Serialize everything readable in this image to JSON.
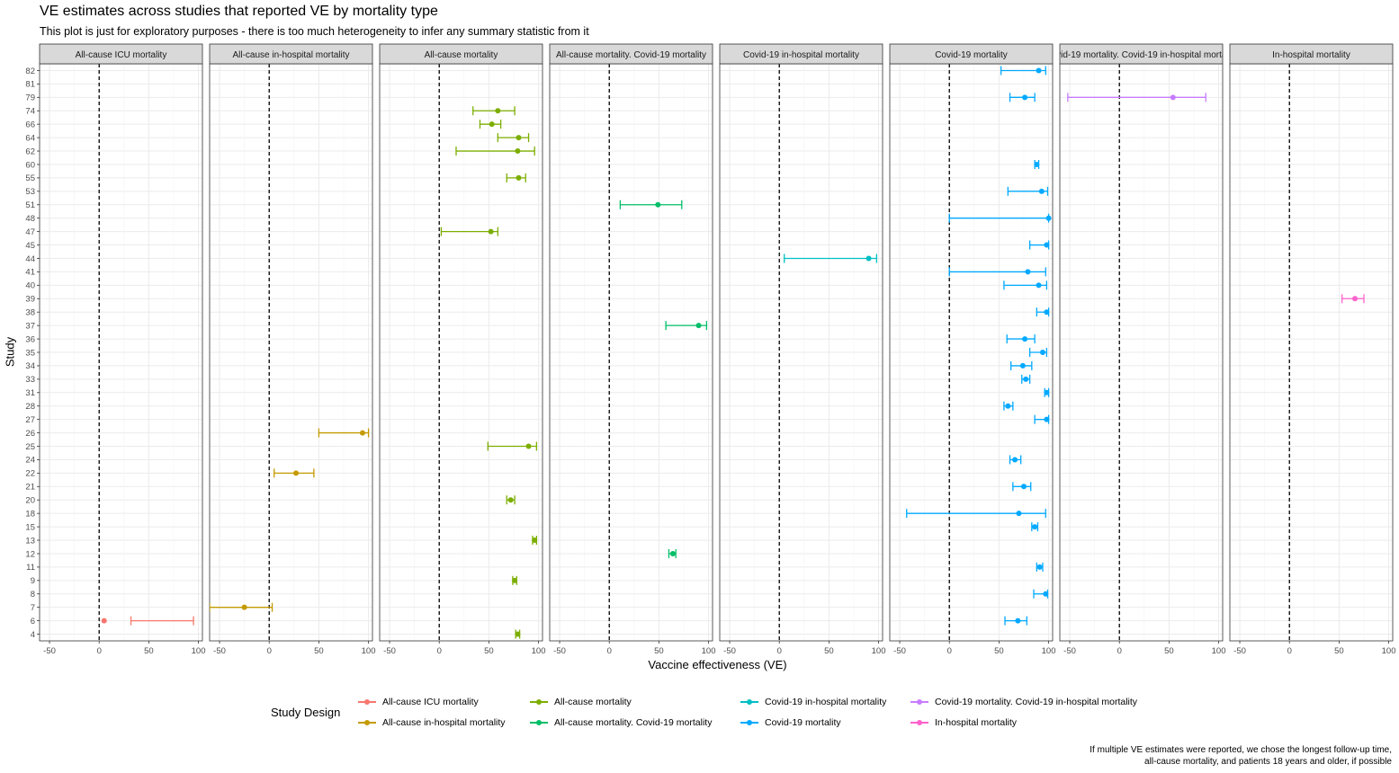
{
  "title": "VE estimates across studies that reported VE by mortality type",
  "subtitle": "This plot is just for exploratory purposes - there is too much heterogeneity to infer any summary statistic from it",
  "caption_line1": "If multiple VE estimates were reported, we chose the longest follow-up time,",
  "caption_line2": "all-cause mortality, and patients 18 years and older, if possible",
  "chart_data": {
    "type": "scatter",
    "subtype": "forest plot with error bars, faceted",
    "xlabel": "Vaccine effectiveness (VE)",
    "ylabel": "Study",
    "xlim": [
      -60,
      104
    ],
    "x_ticks": [
      -50,
      0,
      50,
      100
    ],
    "x_tick_labels": [
      "-50",
      "0",
      "50",
      "100"
    ],
    "reference_line_x": 0,
    "grid": true,
    "legend_title": "Study Design",
    "legend_position": "bottom",
    "studies": [
      "4",
      "6",
      "7",
      "8",
      "9",
      "11",
      "12",
      "13",
      "15",
      "18",
      "20",
      "21",
      "22",
      "24",
      "25",
      "26",
      "27",
      "28",
      "31",
      "33",
      "34",
      "35",
      "36",
      "37",
      "38",
      "39",
      "40",
      "41",
      "44",
      "45",
      "47",
      "48",
      "51",
      "53",
      "55",
      "60",
      "62",
      "64",
      "66",
      "74",
      "79",
      "81",
      "82"
    ],
    "panels": [
      {
        "label": "All-cause ICU mortality",
        "color": "#F8766D"
      },
      {
        "label": "All-cause in-hospital mortality",
        "color": "#C49A00"
      },
      {
        "label": "All-cause mortality",
        "color": "#7CAE00"
      },
      {
        "label": "All-cause mortality. Covid-19 mortality",
        "color": "#00BE67"
      },
      {
        "label": "Covid-19 in-hospital mortality",
        "color": "#00BFC4"
      },
      {
        "label": "Covid-19 mortality",
        "color": "#00A9FF"
      },
      {
        "label": "Covid-19 mortality. Covid-19 in-hospital mortality",
        "color": "#C77CFF"
      },
      {
        "label": "In-hospital mortality",
        "color": "#FF61CC"
      }
    ],
    "points": [
      {
        "panel": 0,
        "study": "6",
        "ve": 5,
        "lo": 32,
        "hi": 95
      },
      {
        "panel": 1,
        "study": "7",
        "ve": -25,
        "lo": -60,
        "hi": 3
      },
      {
        "panel": 1,
        "study": "22",
        "ve": 27,
        "lo": 5,
        "hi": 45
      },
      {
        "panel": 1,
        "study": "26",
        "ve": 94,
        "lo": 50,
        "hi": 100
      },
      {
        "panel": 2,
        "study": "4",
        "ve": 79,
        "lo": 77,
        "hi": 81
      },
      {
        "panel": 2,
        "study": "9",
        "ve": 76,
        "lo": 74,
        "hi": 78
      },
      {
        "panel": 2,
        "study": "13",
        "ve": 96,
        "lo": 94,
        "hi": 98
      },
      {
        "panel": 2,
        "study": "20",
        "ve": 72,
        "lo": 68,
        "hi": 76
      },
      {
        "panel": 2,
        "study": "25",
        "ve": 90,
        "lo": 49,
        "hi": 98
      },
      {
        "panel": 2,
        "study": "47",
        "ve": 52,
        "lo": 2,
        "hi": 59
      },
      {
        "panel": 2,
        "study": "55",
        "ve": 80,
        "lo": 68,
        "hi": 87
      },
      {
        "panel": 2,
        "study": "62",
        "ve": 79,
        "lo": 17,
        "hi": 96
      },
      {
        "panel": 2,
        "study": "64",
        "ve": 80,
        "lo": 59,
        "hi": 90
      },
      {
        "panel": 2,
        "study": "66",
        "ve": 53,
        "lo": 41,
        "hi": 62
      },
      {
        "panel": 2,
        "study": "74",
        "ve": 59,
        "lo": 34,
        "hi": 76
      },
      {
        "panel": 3,
        "study": "12",
        "ve": 64,
        "lo": 60,
        "hi": 67
      },
      {
        "panel": 3,
        "study": "37",
        "ve": 90,
        "lo": 57,
        "hi": 98
      },
      {
        "panel": 3,
        "study": "51",
        "ve": 49,
        "lo": 11,
        "hi": 73
      },
      {
        "panel": 4,
        "study": "44",
        "ve": 90,
        "lo": 5,
        "hi": 98
      },
      {
        "panel": 5,
        "study": "6",
        "ve": 69,
        "lo": 56,
        "hi": 78
      },
      {
        "panel": 5,
        "study": "8",
        "ve": 97,
        "lo": 85,
        "hi": 99
      },
      {
        "panel": 5,
        "study": "11",
        "ve": 91,
        "lo": 88,
        "hi": 94
      },
      {
        "panel": 5,
        "study": "15",
        "ve": 86,
        "lo": 83,
        "hi": 89
      },
      {
        "panel": 5,
        "study": "18",
        "ve": 70,
        "lo": -43,
        "hi": 97
      },
      {
        "panel": 5,
        "study": "21",
        "ve": 75,
        "lo": 64,
        "hi": 82
      },
      {
        "panel": 5,
        "study": "24",
        "ve": 66,
        "lo": 61,
        "hi": 72
      },
      {
        "panel": 5,
        "study": "27",
        "ve": 98,
        "lo": 86,
        "hi": 100
      },
      {
        "panel": 5,
        "study": "28",
        "ve": 59,
        "lo": 55,
        "hi": 64
      },
      {
        "panel": 5,
        "study": "31",
        "ve": 98,
        "lo": 96,
        "hi": 100
      },
      {
        "panel": 5,
        "study": "33",
        "ve": 77,
        "lo": 73,
        "hi": 81
      },
      {
        "panel": 5,
        "study": "34",
        "ve": 74,
        "lo": 62,
        "hi": 83
      },
      {
        "panel": 5,
        "study": "35",
        "ve": 94,
        "lo": 81,
        "hi": 98
      },
      {
        "panel": 5,
        "study": "36",
        "ve": 76,
        "lo": 58,
        "hi": 86
      },
      {
        "panel": 5,
        "study": "38",
        "ve": 98,
        "lo": 88,
        "hi": 100
      },
      {
        "panel": 5,
        "study": "40",
        "ve": 90,
        "lo": 55,
        "hi": 98
      },
      {
        "panel": 5,
        "study": "41",
        "ve": 79,
        "lo": 0,
        "hi": 97
      },
      {
        "panel": 5,
        "study": "45",
        "ve": 98,
        "lo": 81,
        "hi": 100
      },
      {
        "panel": 5,
        "study": "48",
        "ve": 100,
        "lo": 0,
        "hi": 100
      },
      {
        "panel": 5,
        "study": "53",
        "ve": 93,
        "lo": 59,
        "hi": 99
      },
      {
        "panel": 5,
        "study": "60",
        "ve": 88,
        "lo": 86,
        "hi": 90
      },
      {
        "panel": 5,
        "study": "79",
        "ve": 76,
        "lo": 61,
        "hi": 86
      },
      {
        "panel": 5,
        "study": "82",
        "ve": 90,
        "lo": 52,
        "hi": 97
      },
      {
        "panel": 6,
        "study": "79",
        "ve": 54,
        "lo": -52,
        "hi": 87
      },
      {
        "panel": 7,
        "study": "39",
        "ve": 66,
        "lo": 53,
        "hi": 75
      }
    ]
  }
}
